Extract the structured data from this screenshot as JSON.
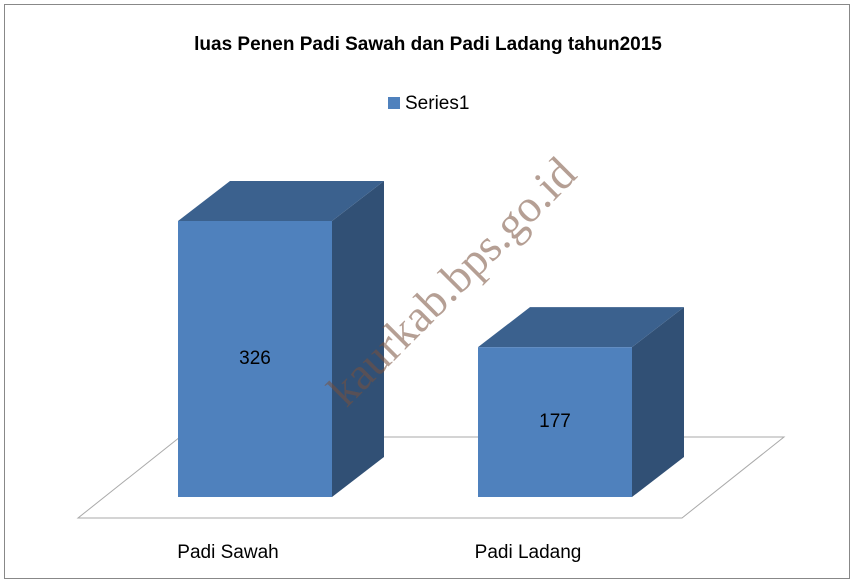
{
  "chart_data": {
    "type": "bar3d",
    "title": "luas Penen Padi Sawah dan Padi Ladang tahun2015",
    "categories": [
      "Padi Sawah",
      "Padi Ladang"
    ],
    "series": [
      {
        "name": "Series1",
        "color": "#4f81bd",
        "values": [
          326,
          177
        ]
      }
    ],
    "legend": "top"
  },
  "watermark": "kaurkab.bps.go.id"
}
